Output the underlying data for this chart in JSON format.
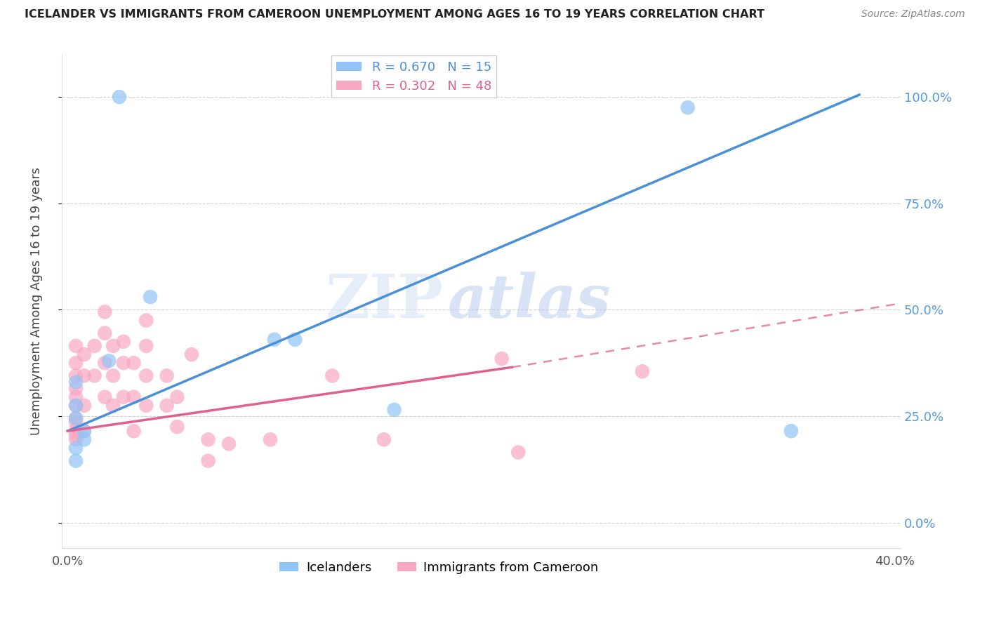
{
  "title": "ICELANDER VS IMMIGRANTS FROM CAMEROON UNEMPLOYMENT AMONG AGES 16 TO 19 YEARS CORRELATION CHART",
  "source": "Source: ZipAtlas.com",
  "ylabel": "Unemployment Among Ages 16 to 19 years",
  "xlim": [
    -0.003,
    0.403
  ],
  "ylim": [
    -0.06,
    1.1
  ],
  "xticks": [
    0.0,
    0.05,
    0.1,
    0.15,
    0.2,
    0.25,
    0.3,
    0.35,
    0.4
  ],
  "yticks": [
    0.0,
    0.25,
    0.5,
    0.75,
    1.0
  ],
  "ytick_labels": [
    "0.0%",
    "25.0%",
    "50.0%",
    "75.0%",
    "100.0%"
  ],
  "blue_color": "#92c5f7",
  "pink_color": "#f9a8c4",
  "blue_line_color": "#4a90d9",
  "pink_line_color": "#e06090",
  "blue_R": 0.67,
  "blue_N": 15,
  "pink_R": 0.302,
  "pink_N": 48,
  "legend_labels": [
    "Icelanders",
    "Immigrants from Cameroon"
  ],
  "watermark_zip": "ZIP",
  "watermark_atlas": "atlas",
  "background_color": "#ffffff",
  "grid_color": "#d0d0d0",
  "blue_line_x0": 0.0,
  "blue_line_y0": 0.215,
  "blue_line_x1": 0.383,
  "blue_line_y1": 1.005,
  "pink_line_x0": 0.0,
  "pink_line_y0": 0.215,
  "pink_line_x1_solid": 0.215,
  "pink_line_y1_solid": 0.365,
  "pink_line_x1_dash": 0.403,
  "pink_line_y1_dash": 0.515,
  "blue_scatter_x": [
    0.025,
    0.04,
    0.1,
    0.11,
    0.02,
    0.004,
    0.004,
    0.004,
    0.008,
    0.008,
    0.158,
    0.3,
    0.004,
    0.004,
    0.35
  ],
  "blue_scatter_y": [
    1.0,
    0.53,
    0.43,
    0.43,
    0.38,
    0.33,
    0.275,
    0.245,
    0.215,
    0.195,
    0.265,
    0.975,
    0.175,
    0.145,
    0.215
  ],
  "pink_scatter_x": [
    0.004,
    0.004,
    0.004,
    0.004,
    0.004,
    0.004,
    0.004,
    0.004,
    0.004,
    0.004,
    0.004,
    0.008,
    0.008,
    0.008,
    0.008,
    0.013,
    0.013,
    0.018,
    0.018,
    0.018,
    0.018,
    0.022,
    0.022,
    0.022,
    0.027,
    0.027,
    0.027,
    0.032,
    0.032,
    0.032,
    0.038,
    0.038,
    0.038,
    0.038,
    0.048,
    0.048,
    0.053,
    0.053,
    0.06,
    0.068,
    0.068,
    0.078,
    0.098,
    0.128,
    0.153,
    0.21,
    0.218,
    0.278
  ],
  "pink_scatter_y": [
    0.415,
    0.375,
    0.345,
    0.315,
    0.295,
    0.275,
    0.245,
    0.235,
    0.215,
    0.205,
    0.195,
    0.395,
    0.345,
    0.275,
    0.215,
    0.415,
    0.345,
    0.495,
    0.445,
    0.375,
    0.295,
    0.415,
    0.345,
    0.275,
    0.425,
    0.375,
    0.295,
    0.375,
    0.295,
    0.215,
    0.475,
    0.415,
    0.345,
    0.275,
    0.345,
    0.275,
    0.295,
    0.225,
    0.395,
    0.195,
    0.145,
    0.185,
    0.195,
    0.345,
    0.195,
    0.385,
    0.165,
    0.355
  ]
}
